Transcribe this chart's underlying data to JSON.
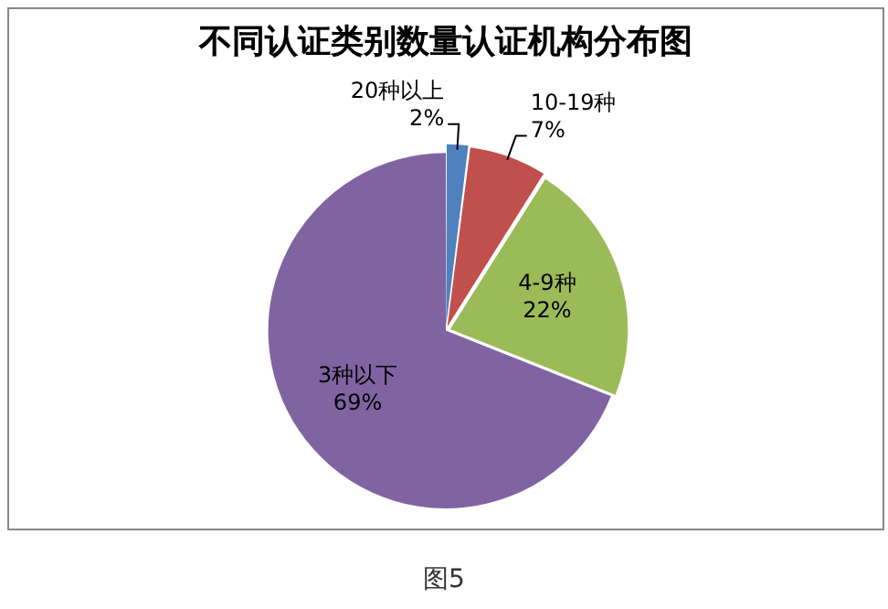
{
  "chart_data": {
    "type": "pie",
    "title": "不同认证类别数量认证机构分布图",
    "categories": [
      "20种以上",
      "10-19种",
      "4-9种",
      "3种以下"
    ],
    "values": [
      2,
      7,
      22,
      69
    ],
    "value_labels": [
      "2%",
      "7%",
      "22%",
      "69%"
    ],
    "colors": [
      "#4f81bd",
      "#c0504d",
      "#9bbb59",
      "#8064a2"
    ],
    "legend": false,
    "annotations": [
      "图5"
    ]
  }
}
